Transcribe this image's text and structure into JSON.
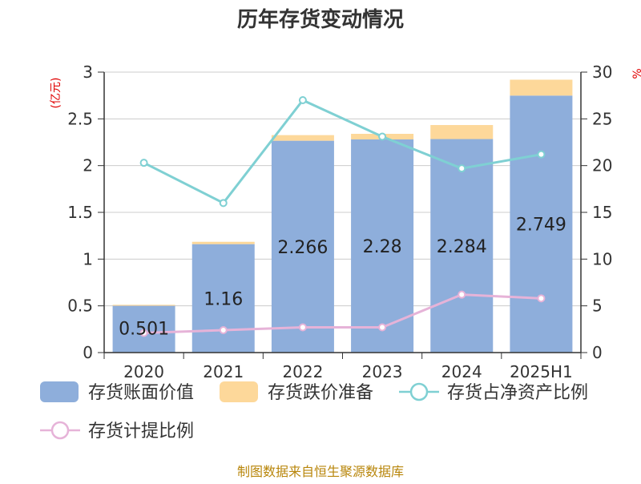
{
  "chart_data": {
    "type": "bar",
    "title": "历年存货变动情况",
    "left_unit": "(亿元)",
    "right_unit": "%",
    "categories": [
      "2020",
      "2021",
      "2022",
      "2023",
      "2024",
      "2025H1"
    ],
    "ylim": [
      0,
      3
    ],
    "y_ticks": [
      "0",
      "0.5",
      "1",
      "1.5",
      "2",
      "2.5",
      "3"
    ],
    "y2lim": [
      0,
      30
    ],
    "y2_ticks": [
      "0",
      "5",
      "10",
      "15",
      "20",
      "25",
      "30"
    ],
    "bar_labels": [
      "0.501",
      "1.16",
      "2.266",
      "2.28",
      "2.284",
      "2.749"
    ],
    "series": [
      {
        "name": "存货账面价值",
        "type": "bar",
        "axis": "left",
        "color": "#8eaedb",
        "values": [
          0.501,
          1.16,
          2.266,
          2.28,
          2.284,
          2.749
        ]
      },
      {
        "name": "存货跌价准备",
        "type": "bar",
        "axis": "left",
        "color": "#fdd89a",
        "values": [
          0.01,
          0.025,
          0.06,
          0.06,
          0.15,
          0.17
        ]
      },
      {
        "name": "存货占净资产比例",
        "type": "line",
        "axis": "right",
        "color": "#7fd0d3",
        "values": [
          20.3,
          16.0,
          27.0,
          23.1,
          19.7,
          21.2
        ]
      },
      {
        "name": "存货计提比例",
        "type": "line",
        "axis": "right",
        "color": "#e6b3d8",
        "values": [
          2.1,
          2.4,
          2.7,
          2.7,
          6.2,
          5.8
        ]
      }
    ]
  },
  "source": "制图数据来自恒生聚源数据库"
}
